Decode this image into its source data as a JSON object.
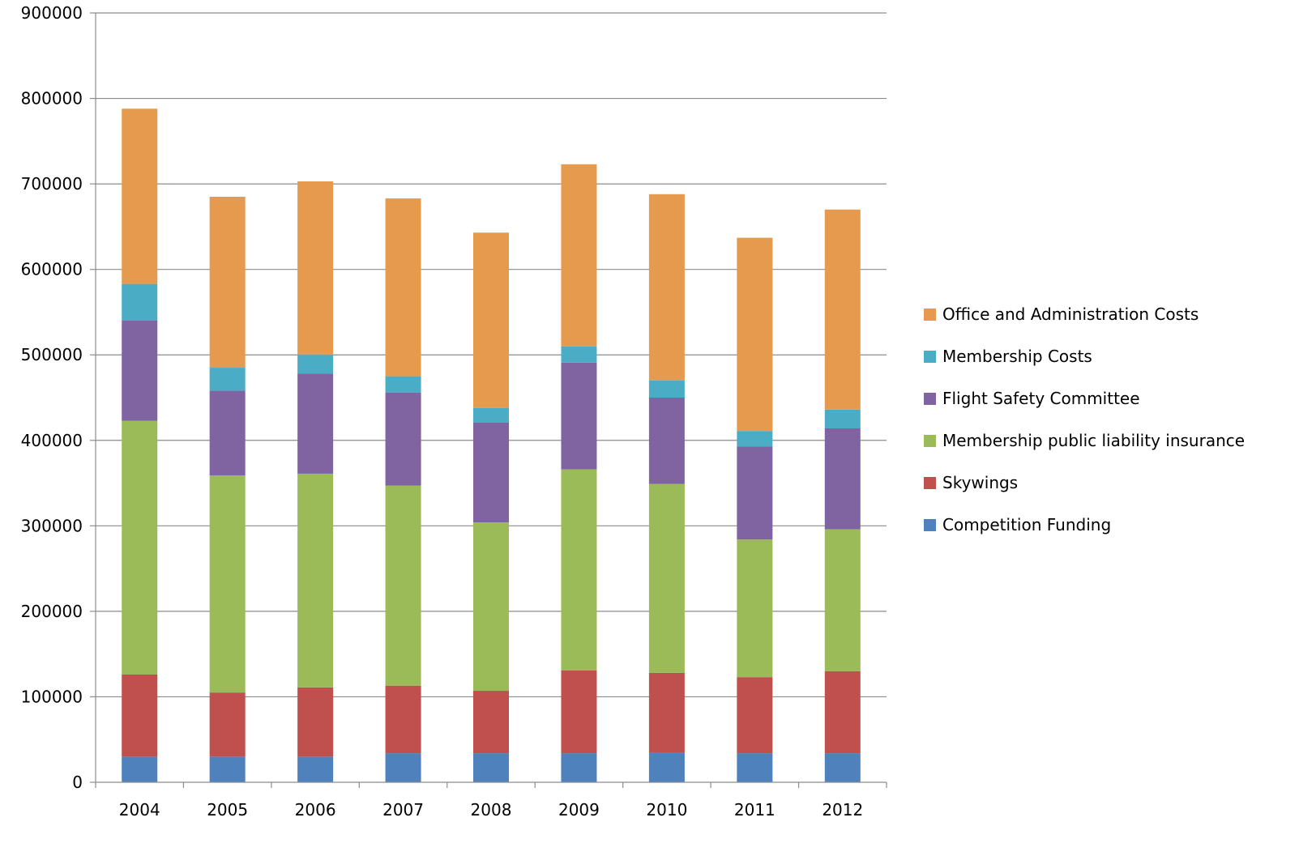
{
  "chart_data": {
    "type": "bar",
    "stacked": true,
    "title": "",
    "xlabel": "",
    "ylabel": "",
    "categories": [
      "2004",
      "2005",
      "2006",
      "2007",
      "2008",
      "2009",
      "2010",
      "2011",
      "2012"
    ],
    "ylim": [
      0,
      900000
    ],
    "yticks": [
      0,
      100000,
      200000,
      300000,
      400000,
      500000,
      600000,
      700000,
      800000,
      900000
    ],
    "ytick_labels": [
      "0",
      "100000",
      "200000",
      "300000",
      "400000",
      "500000",
      "600000",
      "700000",
      "800000",
      "900000"
    ],
    "grid": true,
    "legend_position": "right",
    "series": [
      {
        "name": "Competition Funding",
        "color": "#4F81BD",
        "values": [
          30000,
          30000,
          30000,
          34000,
          34000,
          34000,
          35000,
          34000,
          34000
        ]
      },
      {
        "name": "Skywings",
        "color": "#C0504D",
        "values": [
          96000,
          75000,
          81000,
          79000,
          73000,
          97000,
          93000,
          89000,
          96000
        ]
      },
      {
        "name": "Membership public liability insurance",
        "color": "#9BBB59",
        "values": [
          297000,
          254000,
          250000,
          234000,
          197000,
          235000,
          221000,
          161000,
          166000
        ]
      },
      {
        "name": "Flight Safety Committee",
        "color": "#8064A2",
        "values": [
          117000,
          99000,
          117000,
          109000,
          117000,
          125000,
          101000,
          109000,
          118000
        ]
      },
      {
        "name": "Membership Costs",
        "color": "#4BACC6",
        "values": [
          43000,
          27000,
          22000,
          19000,
          17000,
          19000,
          20000,
          18000,
          22000
        ]
      },
      {
        "name": "Office and Administration Costs",
        "color": "#E59A4D",
        "values": [
          205000,
          200000,
          203000,
          208000,
          205000,
          213000,
          218000,
          226000,
          234000
        ]
      }
    ]
  }
}
